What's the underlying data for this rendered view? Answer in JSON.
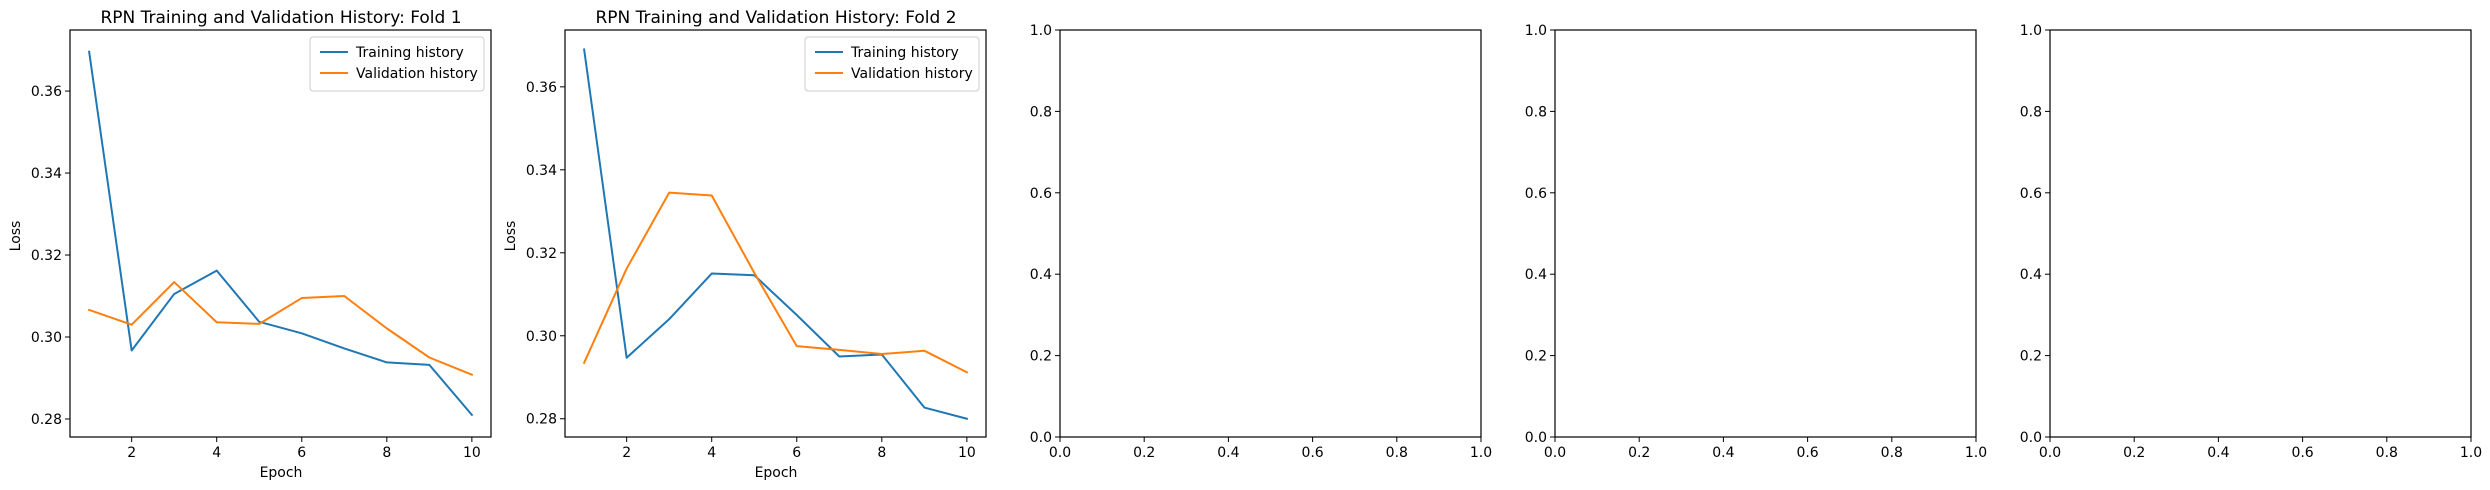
{
  "figure": {
    "background": "#ffffff"
  },
  "colors": {
    "training": "#1f77b4",
    "validation": "#ff7f0e",
    "axes": "#000000",
    "legend_border": "#cccccc"
  },
  "chart_data": [
    {
      "type": "line",
      "title": "RPN Training and Validation History: Fold 1",
      "xlabel": "Epoch",
      "ylabel": "Loss",
      "xlim": [
        0.55,
        10.45
      ],
      "ylim": [
        0.2756,
        0.3749
      ],
      "xticks": [
        2,
        4,
        6,
        8,
        10
      ],
      "xtick_labels": [
        "2",
        "4",
        "6",
        "8",
        "10"
      ],
      "yticks": [
        0.28,
        0.3,
        0.32,
        0.34,
        0.36
      ],
      "ytick_labels": [
        "0.28",
        "0.30",
        "0.32",
        "0.34",
        "0.36"
      ],
      "grid": false,
      "legend": "top-right",
      "x": [
        1,
        2,
        3,
        4,
        5,
        6,
        7,
        8,
        9,
        10
      ],
      "series": [
        {
          "name": "Training history",
          "color": "#1f77b4",
          "values": [
            0.3696,
            0.2967,
            0.3105,
            0.3162,
            0.3037,
            0.3009,
            0.2972,
            0.2938,
            0.2932,
            0.281
          ]
        },
        {
          "name": "Validation history",
          "color": "#ff7f0e",
          "values": [
            0.3066,
            0.303,
            0.3134,
            0.3036,
            0.3032,
            0.3095,
            0.31,
            0.3021,
            0.295,
            0.2908
          ]
        }
      ]
    },
    {
      "type": "line",
      "title": "RPN Training and Validation History: Fold 2",
      "xlabel": "Epoch",
      "ylabel": "Loss",
      "xlim": [
        0.55,
        10.45
      ],
      "ylim": [
        0.2756,
        0.3737
      ],
      "xticks": [
        2,
        4,
        6,
        8,
        10
      ],
      "xtick_labels": [
        "2",
        "4",
        "6",
        "8",
        "10"
      ],
      "yticks": [
        0.28,
        0.3,
        0.32,
        0.34,
        0.36
      ],
      "ytick_labels": [
        "0.28",
        "0.30",
        "0.32",
        "0.34",
        "0.36"
      ],
      "grid": false,
      "legend": "top-right",
      "x": [
        1,
        2,
        3,
        4,
        5,
        6,
        7,
        8,
        9,
        10
      ],
      "series": [
        {
          "name": "Training history",
          "color": "#1f77b4",
          "values": [
            0.369,
            0.2947,
            0.304,
            0.315,
            0.3146,
            0.305,
            0.295,
            0.2955,
            0.2827,
            0.28
          ]
        },
        {
          "name": "Validation history",
          "color": "#ff7f0e",
          "values": [
            0.2935,
            0.3162,
            0.3345,
            0.3338,
            0.3152,
            0.2975,
            0.2966,
            0.2956,
            0.2964,
            0.2912
          ]
        }
      ]
    },
    {
      "type": "line",
      "title": "",
      "xlabel": "",
      "ylabel": "",
      "xlim": [
        0,
        1
      ],
      "ylim": [
        0,
        1
      ],
      "xticks": [
        0,
        0.2,
        0.4,
        0.6,
        0.8,
        1.0
      ],
      "xtick_labels": [
        "0.0",
        "0.2",
        "0.4",
        "0.6",
        "0.8",
        "1.0"
      ],
      "yticks": [
        0,
        0.2,
        0.4,
        0.6,
        0.8,
        1.0
      ],
      "ytick_labels": [
        "0.0",
        "0.2",
        "0.4",
        "0.6",
        "0.8",
        "1.0"
      ],
      "grid": false,
      "series": []
    },
    {
      "type": "line",
      "title": "",
      "xlabel": "",
      "ylabel": "",
      "xlim": [
        0,
        1
      ],
      "ylim": [
        0,
        1
      ],
      "xticks": [
        0,
        0.2,
        0.4,
        0.6,
        0.8,
        1.0
      ],
      "xtick_labels": [
        "0.0",
        "0.2",
        "0.4",
        "0.6",
        "0.8",
        "1.0"
      ],
      "yticks": [
        0,
        0.2,
        0.4,
        0.6,
        0.8,
        1.0
      ],
      "ytick_labels": [
        "0.0",
        "0.2",
        "0.4",
        "0.6",
        "0.8",
        "1.0"
      ],
      "grid": false,
      "series": []
    },
    {
      "type": "line",
      "title": "",
      "xlabel": "",
      "ylabel": "",
      "xlim": [
        0,
        1
      ],
      "ylim": [
        0,
        1
      ],
      "xticks": [
        0,
        0.2,
        0.4,
        0.6,
        0.8,
        1.0
      ],
      "xtick_labels": [
        "0.0",
        "0.2",
        "0.4",
        "0.6",
        "0.8",
        "1.0"
      ],
      "yticks": [
        0,
        0.2,
        0.4,
        0.6,
        0.8,
        1.0
      ],
      "ytick_labels": [
        "0.0",
        "0.2",
        "0.4",
        "0.6",
        "0.8",
        "1.0"
      ],
      "grid": false,
      "series": []
    }
  ]
}
